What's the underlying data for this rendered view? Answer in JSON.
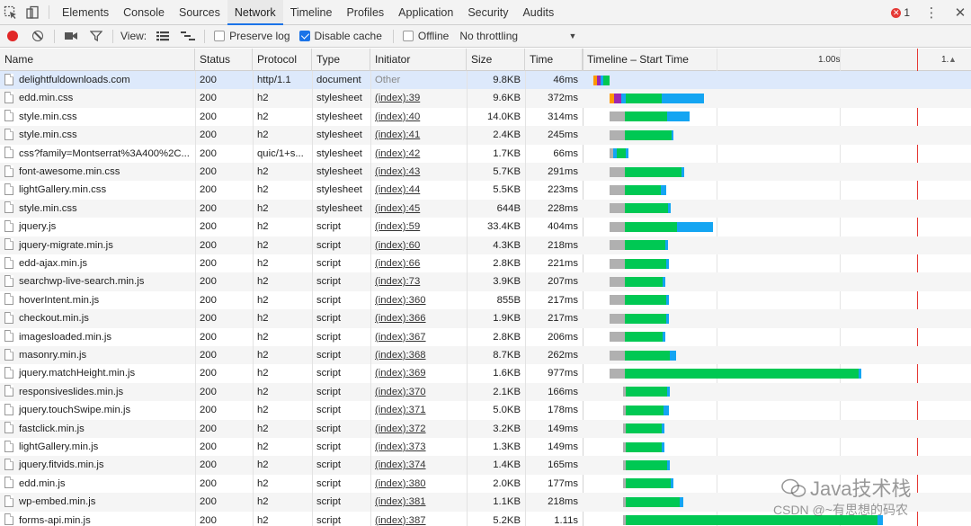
{
  "tabbar": {
    "tabs": [
      "Elements",
      "Console",
      "Sources",
      "Network",
      "Timeline",
      "Profiles",
      "Application",
      "Security",
      "Audits"
    ],
    "active_tab": "Network",
    "error_count": "1"
  },
  "toolbar": {
    "view_label": "View:",
    "preserve_log_label": "Preserve log",
    "disable_cache_label": "Disable cache",
    "offline_label": "Offline",
    "throttling_value": "No throttling"
  },
  "table": {
    "columns": {
      "name": "Name",
      "status": "Status",
      "protocol": "Protocol",
      "type": "Type",
      "initiator": "Initiator",
      "size": "Size",
      "time": "Time",
      "timeline": "Timeline – Start Time"
    },
    "timeline_tick": "1.00s",
    "timeline_tick_right": "1.",
    "rows": [
      {
        "name": "delightfuldownloads.com",
        "status": "200",
        "protocol": "http/1.1",
        "type": "document",
        "initiator": "Other",
        "size": "9.8KB",
        "time": "46ms"
      },
      {
        "name": "edd.min.css",
        "status": "200",
        "protocol": "h2",
        "type": "stylesheet",
        "initiator": "(index):39",
        "size": "9.6KB",
        "time": "372ms"
      },
      {
        "name": "style.min.css",
        "status": "200",
        "protocol": "h2",
        "type": "stylesheet",
        "initiator": "(index):40",
        "size": "14.0KB",
        "time": "314ms"
      },
      {
        "name": "style.min.css",
        "status": "200",
        "protocol": "h2",
        "type": "stylesheet",
        "initiator": "(index):41",
        "size": "2.4KB",
        "time": "245ms"
      },
      {
        "name": "css?family=Montserrat%3A400%2C...",
        "status": "200",
        "protocol": "quic/1+s...",
        "type": "stylesheet",
        "initiator": "(index):42",
        "size": "1.7KB",
        "time": "66ms"
      },
      {
        "name": "font-awesome.min.css",
        "status": "200",
        "protocol": "h2",
        "type": "stylesheet",
        "initiator": "(index):43",
        "size": "5.7KB",
        "time": "291ms"
      },
      {
        "name": "lightGallery.min.css",
        "status": "200",
        "protocol": "h2",
        "type": "stylesheet",
        "initiator": "(index):44",
        "size": "5.5KB",
        "time": "223ms"
      },
      {
        "name": "style.min.css",
        "status": "200",
        "protocol": "h2",
        "type": "stylesheet",
        "initiator": "(index):45",
        "size": "644B",
        "time": "228ms"
      },
      {
        "name": "jquery.js",
        "status": "200",
        "protocol": "h2",
        "type": "script",
        "initiator": "(index):59",
        "size": "33.4KB",
        "time": "404ms"
      },
      {
        "name": "jquery-migrate.min.js",
        "status": "200",
        "protocol": "h2",
        "type": "script",
        "initiator": "(index):60",
        "size": "4.3KB",
        "time": "218ms"
      },
      {
        "name": "edd-ajax.min.js",
        "status": "200",
        "protocol": "h2",
        "type": "script",
        "initiator": "(index):66",
        "size": "2.8KB",
        "time": "221ms"
      },
      {
        "name": "searchwp-live-search.min.js",
        "status": "200",
        "protocol": "h2",
        "type": "script",
        "initiator": "(index):73",
        "size": "3.9KB",
        "time": "207ms"
      },
      {
        "name": "hoverIntent.min.js",
        "status": "200",
        "protocol": "h2",
        "type": "script",
        "initiator": "(index):360",
        "size": "855B",
        "time": "217ms"
      },
      {
        "name": "checkout.min.js",
        "status": "200",
        "protocol": "h2",
        "type": "script",
        "initiator": "(index):366",
        "size": "1.9KB",
        "time": "217ms"
      },
      {
        "name": "imagesloaded.min.js",
        "status": "200",
        "protocol": "h2",
        "type": "script",
        "initiator": "(index):367",
        "size": "2.8KB",
        "time": "206ms"
      },
      {
        "name": "masonry.min.js",
        "status": "200",
        "protocol": "h2",
        "type": "script",
        "initiator": "(index):368",
        "size": "8.7KB",
        "time": "262ms"
      },
      {
        "name": "jquery.matchHeight.min.js",
        "status": "200",
        "protocol": "h2",
        "type": "script",
        "initiator": "(index):369",
        "size": "1.6KB",
        "time": "977ms"
      },
      {
        "name": "responsiveslides.min.js",
        "status": "200",
        "protocol": "h2",
        "type": "script",
        "initiator": "(index):370",
        "size": "2.1KB",
        "time": "166ms"
      },
      {
        "name": "jquery.touchSwipe.min.js",
        "status": "200",
        "protocol": "h2",
        "type": "script",
        "initiator": "(index):371",
        "size": "5.0KB",
        "time": "178ms"
      },
      {
        "name": "fastclick.min.js",
        "status": "200",
        "protocol": "h2",
        "type": "script",
        "initiator": "(index):372",
        "size": "3.2KB",
        "time": "149ms"
      },
      {
        "name": "lightGallery.min.js",
        "status": "200",
        "protocol": "h2",
        "type": "script",
        "initiator": "(index):373",
        "size": "1.3KB",
        "time": "149ms"
      },
      {
        "name": "jquery.fitvids.min.js",
        "status": "200",
        "protocol": "h2",
        "type": "script",
        "initiator": "(index):374",
        "size": "1.4KB",
        "time": "165ms"
      },
      {
        "name": "edd.min.js",
        "status": "200",
        "protocol": "h2",
        "type": "script",
        "initiator": "(index):380",
        "size": "2.0KB",
        "time": "177ms"
      },
      {
        "name": "wp-embed.min.js",
        "status": "200",
        "protocol": "h2",
        "type": "script",
        "initiator": "(index):381",
        "size": "1.1KB",
        "time": "218ms"
      },
      {
        "name": "forms-api.min.js",
        "status": "200",
        "protocol": "h2",
        "type": "script",
        "initiator": "(index):387",
        "size": "5.2KB",
        "time": "1.11s"
      }
    ]
  },
  "colors": {
    "waiting": "#00c853",
    "download": "#14a5f2",
    "queued": "#b0b0b0",
    "tick_line": "#e53935",
    "accent": "#1a73e8"
  },
  "watermark": {
    "line1": "Java技术栈",
    "line2": "CSDN @~有思想的码农"
  }
}
